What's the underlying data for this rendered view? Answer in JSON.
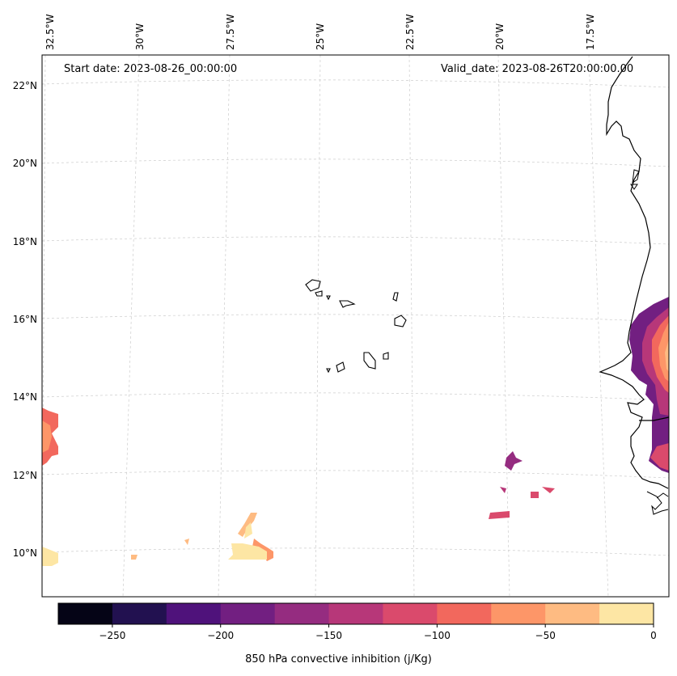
{
  "header": {
    "start_date": "Start date: 2023-08-26_00:00:00",
    "valid_date": "Valid_date: 2023-08-26T20:00:00.00"
  },
  "axes": {
    "lon_labels": [
      "32.5°W",
      "30°W",
      "27.5°W",
      "25°W",
      "22.5°W",
      "20°W",
      "17.5°W"
    ],
    "lat_labels": [
      "22°N",
      "20°N",
      "18°N",
      "16°N",
      "14°N",
      "12°N",
      "10°N"
    ]
  },
  "colorbar": {
    "label": "850 hPa convective inhibition (j/Kg)",
    "ticks": [
      "−250",
      "−200",
      "−150",
      "−100",
      "−50",
      "0"
    ],
    "range": [
      -275,
      0
    ],
    "colors": [
      "#050416",
      "#221150",
      "#4f127b",
      "#721f81",
      "#952c80",
      "#b73779",
      "#da4a6c",
      "#f2685d",
      "#fd9668",
      "#febb82",
      "#fde6a4"
    ]
  },
  "map": {
    "variable": "850 hPa convective inhibition",
    "units": "j/Kg",
    "features": [
      "coastline",
      "cape-verde-islands",
      "gridlines",
      "cin-contours"
    ]
  }
}
